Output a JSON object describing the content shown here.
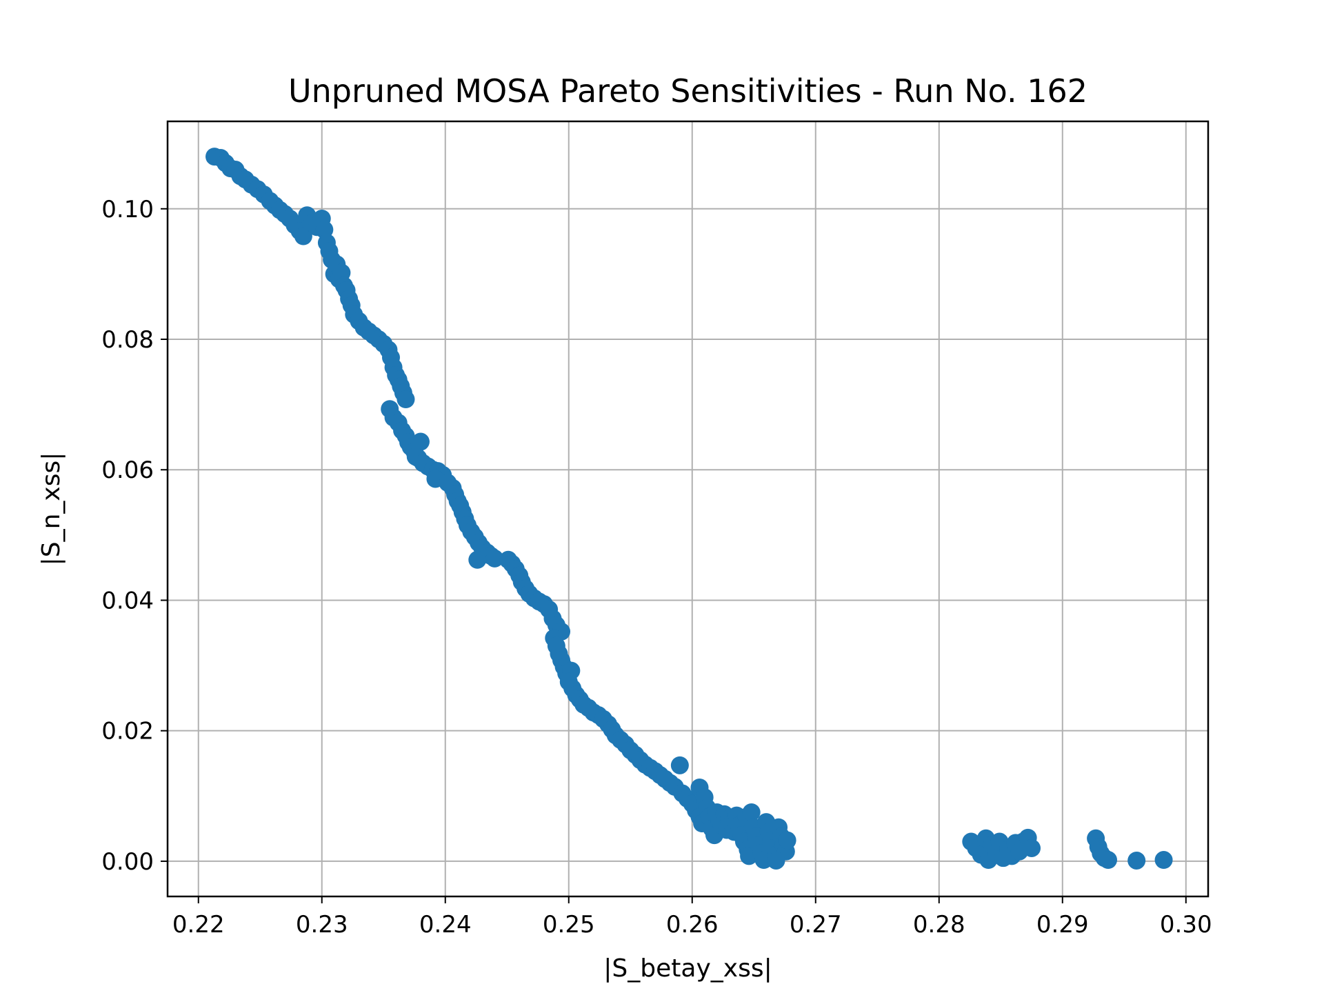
{
  "chart_data": {
    "type": "scatter",
    "title": "Unpruned MOSA Pareto Sensitivities - Run No. 162",
    "xlabel": "|S_betay_xss|",
    "ylabel": "|S_n_xss|",
    "xlim": [
      0.2175,
      0.3018
    ],
    "ylim": [
      -0.0054,
      0.1134
    ],
    "xticks": [
      0.22,
      0.23,
      0.24,
      0.25,
      0.26,
      0.27,
      0.28,
      0.29,
      0.3
    ],
    "xtick_labels": [
      "0.22",
      "0.23",
      "0.24",
      "0.25",
      "0.26",
      "0.27",
      "0.28",
      "0.29",
      "0.30"
    ],
    "yticks": [
      0.0,
      0.02,
      0.04,
      0.06,
      0.08,
      0.1
    ],
    "ytick_labels": [
      "0.00",
      "0.02",
      "0.04",
      "0.06",
      "0.08",
      "0.10"
    ],
    "grid": true,
    "color": "#1f77b4",
    "series": [
      {
        "points": [
          [
            0.2213,
            0.108
          ],
          [
            0.2218,
            0.1078
          ],
          [
            0.2222,
            0.107
          ],
          [
            0.2226,
            0.1062
          ],
          [
            0.223,
            0.106
          ],
          [
            0.2234,
            0.105
          ],
          [
            0.2238,
            0.1045
          ],
          [
            0.2243,
            0.1037
          ],
          [
            0.2248,
            0.103
          ],
          [
            0.2253,
            0.1022
          ],
          [
            0.2258,
            0.1012
          ],
          [
            0.2262,
            0.1005
          ],
          [
            0.2266,
            0.0998
          ],
          [
            0.227,
            0.0992
          ],
          [
            0.2274,
            0.0985
          ],
          [
            0.2278,
            0.0975
          ],
          [
            0.2282,
            0.0966
          ],
          [
            0.2285,
            0.0958
          ],
          [
            0.2288,
            0.099
          ],
          [
            0.2292,
            0.0978
          ],
          [
            0.2296,
            0.0972
          ],
          [
            0.23,
            0.0985
          ],
          [
            0.2302,
            0.0968
          ],
          [
            0.2304,
            0.0948
          ],
          [
            0.2306,
            0.0935
          ],
          [
            0.2308,
            0.0922
          ],
          [
            0.231,
            0.09
          ],
          [
            0.2312,
            0.0915
          ],
          [
            0.2314,
            0.0892
          ],
          [
            0.2316,
            0.0902
          ],
          [
            0.2318,
            0.0882
          ],
          [
            0.232,
            0.0875
          ],
          [
            0.2322,
            0.0862
          ],
          [
            0.2324,
            0.0852
          ],
          [
            0.2326,
            0.0838
          ],
          [
            0.233,
            0.0828
          ],
          [
            0.2334,
            0.0818
          ],
          [
            0.2338,
            0.0812
          ],
          [
            0.2342,
            0.0806
          ],
          [
            0.2346,
            0.08
          ],
          [
            0.235,
            0.0793
          ],
          [
            0.2354,
            0.0784
          ],
          [
            0.2356,
            0.0772
          ],
          [
            0.2358,
            0.0757
          ],
          [
            0.236,
            0.0745
          ],
          [
            0.2362,
            0.0738
          ],
          [
            0.2364,
            0.0728
          ],
          [
            0.2366,
            0.0718
          ],
          [
            0.2368,
            0.0708
          ],
          [
            0.2355,
            0.0693
          ],
          [
            0.2358,
            0.068
          ],
          [
            0.2362,
            0.0672
          ],
          [
            0.2365,
            0.066
          ],
          [
            0.2368,
            0.0652
          ],
          [
            0.237,
            0.0642
          ],
          [
            0.2372,
            0.0635
          ],
          [
            0.2375,
            0.0628
          ],
          [
            0.2378,
            0.0618
          ],
          [
            0.238,
            0.0643
          ],
          [
            0.2376,
            0.062
          ],
          [
            0.2382,
            0.061
          ],
          [
            0.2386,
            0.0605
          ],
          [
            0.239,
            0.06
          ],
          [
            0.2394,
            0.0598
          ],
          [
            0.2398,
            0.0592
          ],
          [
            0.2392,
            0.0586
          ],
          [
            0.2402,
            0.058
          ],
          [
            0.2406,
            0.0572
          ],
          [
            0.2408,
            0.0562
          ],
          [
            0.241,
            0.0552
          ],
          [
            0.2412,
            0.0545
          ],
          [
            0.2414,
            0.0535
          ],
          [
            0.2416,
            0.0525
          ],
          [
            0.2418,
            0.0515
          ],
          [
            0.2421,
            0.0505
          ],
          [
            0.2424,
            0.0497
          ],
          [
            0.2427,
            0.0488
          ],
          [
            0.243,
            0.048
          ],
          [
            0.2434,
            0.0473
          ],
          [
            0.2437,
            0.0468
          ],
          [
            0.244,
            0.0464
          ],
          [
            0.2426,
            0.0462
          ],
          [
            0.2451,
            0.0462
          ],
          [
            0.2454,
            0.0456
          ],
          [
            0.2457,
            0.0448
          ],
          [
            0.246,
            0.0438
          ],
          [
            0.2462,
            0.0428
          ],
          [
            0.2465,
            0.0418
          ],
          [
            0.2468,
            0.041
          ],
          [
            0.2472,
            0.0403
          ],
          [
            0.2476,
            0.0398
          ],
          [
            0.248,
            0.0394
          ],
          [
            0.2484,
            0.0386
          ],
          [
            0.2487,
            0.0372
          ],
          [
            0.249,
            0.0362
          ],
          [
            0.2494,
            0.0352
          ],
          [
            0.2488,
            0.0342
          ],
          [
            0.249,
            0.033
          ],
          [
            0.2492,
            0.0318
          ],
          [
            0.2494,
            0.0308
          ],
          [
            0.2496,
            0.0298
          ],
          [
            0.2498,
            0.0288
          ],
          [
            0.2502,
            0.0292
          ],
          [
            0.25,
            0.0275
          ],
          [
            0.2503,
            0.0265
          ],
          [
            0.2506,
            0.0255
          ],
          [
            0.2509,
            0.0248
          ],
          [
            0.2512,
            0.024
          ],
          [
            0.2516,
            0.0235
          ],
          [
            0.252,
            0.0228
          ],
          [
            0.2524,
            0.0224
          ],
          [
            0.2528,
            0.0218
          ],
          [
            0.2532,
            0.021
          ],
          [
            0.2535,
            0.0202
          ],
          [
            0.2538,
            0.0193
          ],
          [
            0.2542,
            0.0186
          ],
          [
            0.2546,
            0.0179
          ],
          [
            0.255,
            0.017
          ],
          [
            0.2554,
            0.0163
          ],
          [
            0.2558,
            0.0155
          ],
          [
            0.2562,
            0.0148
          ],
          [
            0.2566,
            0.0143
          ],
          [
            0.257,
            0.0138
          ],
          [
            0.2574,
            0.0132
          ],
          [
            0.2578,
            0.0126
          ],
          [
            0.2582,
            0.012
          ],
          [
            0.2586,
            0.0114
          ],
          [
            0.259,
            0.0147
          ],
          [
            0.2592,
            0.0104
          ],
          [
            0.2596,
            0.0096
          ],
          [
            0.26,
            0.0088
          ],
          [
            0.2603,
            0.0078
          ],
          [
            0.2606,
            0.0068
          ],
          [
            0.2608,
            0.0058
          ],
          [
            0.2606,
            0.0113
          ],
          [
            0.261,
            0.0098
          ],
          [
            0.2612,
            0.0082
          ],
          [
            0.2614,
            0.0068
          ],
          [
            0.2616,
            0.005
          ],
          [
            0.2618,
            0.004
          ],
          [
            0.262,
            0.0075
          ],
          [
            0.2622,
            0.0062
          ],
          [
            0.2624,
            0.0055
          ],
          [
            0.2626,
            0.0072
          ],
          [
            0.2628,
            0.0048
          ],
          [
            0.263,
            0.0065
          ],
          [
            0.2632,
            0.0058
          ],
          [
            0.2634,
            0.0045
          ],
          [
            0.2636,
            0.007
          ],
          [
            0.2638,
            0.0055
          ],
          [
            0.264,
            0.004
          ],
          [
            0.2642,
            0.003
          ],
          [
            0.2644,
            0.0068
          ],
          [
            0.2645,
            0.0018
          ],
          [
            0.2646,
            0.0008
          ],
          [
            0.2648,
            0.0075
          ],
          [
            0.265,
            0.0052
          ],
          [
            0.2652,
            0.0038
          ],
          [
            0.2654,
            0.0025
          ],
          [
            0.2656,
            0.0012
          ],
          [
            0.2658,
            0.0002
          ],
          [
            0.266,
            0.006
          ],
          [
            0.2662,
            0.0045
          ],
          [
            0.2664,
            0.0032
          ],
          [
            0.2666,
            0.002
          ],
          [
            0.2668,
            0.001
          ],
          [
            0.267,
            0.0052
          ],
          [
            0.2672,
            0.0038
          ],
          [
            0.2674,
            0.0025
          ],
          [
            0.2676,
            0.0015
          ],
          [
            0.2677,
            0.0032
          ],
          [
            0.2668,
            0.0001
          ],
          [
            0.2826,
            0.003
          ],
          [
            0.283,
            0.002
          ],
          [
            0.2834,
            0.001
          ],
          [
            0.2838,
            0.0035
          ],
          [
            0.284,
            0.0002
          ],
          [
            0.2843,
            0.0025
          ],
          [
            0.2846,
            0.0012
          ],
          [
            0.2849,
            0.003
          ],
          [
            0.2852,
            0.0005
          ],
          [
            0.2856,
            0.0018
          ],
          [
            0.2859,
            0.0008
          ],
          [
            0.2862,
            0.0028
          ],
          [
            0.2865,
            0.0015
          ],
          [
            0.2868,
            0.003
          ],
          [
            0.2872,
            0.0036
          ],
          [
            0.2875,
            0.002
          ],
          [
            0.2927,
            0.0035
          ],
          [
            0.2929,
            0.0022
          ],
          [
            0.2931,
            0.0012
          ],
          [
            0.2934,
            0.0005
          ],
          [
            0.2937,
            0.0002
          ],
          [
            0.296,
            0.0001
          ],
          [
            0.2982,
            0.0002
          ]
        ]
      }
    ]
  }
}
